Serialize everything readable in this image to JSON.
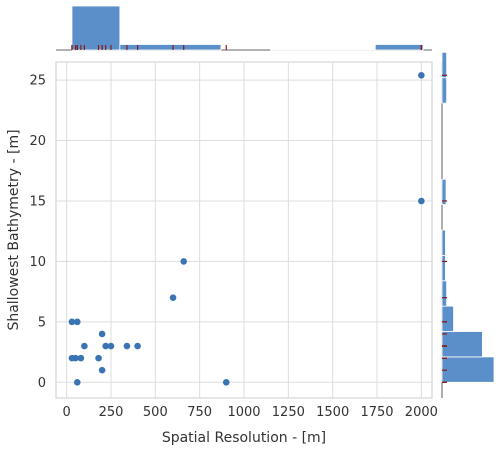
{
  "chart_data": {
    "type": "scatter",
    "title": "",
    "xlabel": "Spatial Resolution - [m]",
    "ylabel": "Shallowest Bathymetry - [m]",
    "xlim": [
      -60,
      2060
    ],
    "ylim": [
      -1.3,
      26.5
    ],
    "xticks": [
      0,
      250,
      500,
      750,
      1000,
      1250,
      1500,
      1750,
      2000
    ],
    "yticks": [
      0,
      5,
      10,
      15,
      20,
      25
    ],
    "grid": true,
    "marginal": "histogram with rug, top and right",
    "point_color": "#3b74b3",
    "hist_color": "#5b8fc9",
    "rug_color": "#8b1a1a",
    "series": [
      {
        "x": [
          2000,
          2000,
          660,
          600,
          30,
          60,
          30,
          50,
          100,
          80,
          200,
          220,
          250,
          180,
          340,
          400,
          200,
          60,
          900
        ],
        "y": [
          25.4,
          15,
          10,
          7,
          5,
          5,
          2,
          2,
          3,
          2,
          4,
          3,
          3,
          2,
          3,
          3,
          1,
          0,
          0
        ]
      }
    ],
    "top_histogram": {
      "bins_x": [
        30,
        300,
        870,
        1150,
        1740,
        2010
      ],
      "counts": [
        8,
        1,
        0,
        0.1,
        1
      ]
    },
    "right_histogram": {
      "bin_edges_y": [
        0,
        2.1,
        4.2,
        6.3,
        8.4,
        10.5,
        12.6,
        14.7,
        16.8,
        18.9,
        21,
        23.1,
        25.2,
        27.3
      ],
      "counts": [
        4.5,
        3.5,
        1,
        0.4,
        0.3,
        0.3,
        0,
        0.35,
        0,
        0,
        0,
        0.4,
        0.4
      ]
    }
  }
}
